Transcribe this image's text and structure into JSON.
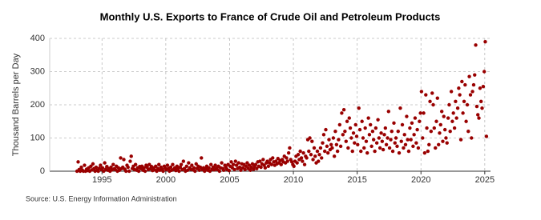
{
  "chart_data": {
    "type": "scatter",
    "title": "Monthly U.S. Exports to France of Crude Oil and Petroleum Products",
    "y_label": "Thousand Barrels per Day",
    "source": "Source: U.S. Energy Information Administration",
    "color": "#990000",
    "grid": true,
    "xlim": [
      1990.9,
      2025.45
    ],
    "ylim": [
      0,
      400
    ],
    "xticks": [
      1995,
      2000,
      2005,
      2010,
      2015,
      2020,
      2025
    ],
    "yticks": [
      0,
      100,
      200,
      300,
      400
    ],
    "x": [
      1993.04,
      1993.13,
      1993.21,
      1993.29,
      1993.38,
      1993.46,
      1993.54,
      1993.63,
      1993.71,
      1993.79,
      1993.88,
      1993.96,
      1994.04,
      1994.13,
      1994.21,
      1994.29,
      1994.38,
      1994.46,
      1994.54,
      1994.63,
      1994.71,
      1994.79,
      1994.88,
      1994.96,
      1995.04,
      1995.13,
      1995.21,
      1995.29,
      1995.38,
      1995.46,
      1995.54,
      1995.63,
      1995.71,
      1995.79,
      1995.88,
      1995.96,
      1996.04,
      1996.13,
      1996.21,
      1996.29,
      1996.38,
      1996.46,
      1996.54,
      1996.63,
      1996.71,
      1996.79,
      1996.88,
      1996.96,
      1997.04,
      1997.13,
      1997.21,
      1997.29,
      1997.38,
      1997.46,
      1997.54,
      1997.63,
      1997.71,
      1997.79,
      1997.88,
      1997.96,
      1998.04,
      1998.13,
      1998.21,
      1998.29,
      1998.38,
      1998.46,
      1998.54,
      1998.63,
      1998.71,
      1998.79,
      1998.88,
      1998.96,
      1999.04,
      1999.13,
      1999.21,
      1999.29,
      1999.38,
      1999.46,
      1999.54,
      1999.63,
      1999.71,
      1999.79,
      1999.88,
      1999.96,
      2000.04,
      2000.13,
      2000.21,
      2000.29,
      2000.38,
      2000.46,
      2000.54,
      2000.63,
      2000.71,
      2000.79,
      2000.88,
      2000.96,
      2001.04,
      2001.13,
      2001.21,
      2001.29,
      2001.38,
      2001.46,
      2001.54,
      2001.63,
      2001.71,
      2001.79,
      2001.88,
      2001.96,
      2002.04,
      2002.13,
      2002.21,
      2002.29,
      2002.38,
      2002.46,
      2002.54,
      2002.63,
      2002.71,
      2002.79,
      2002.88,
      2002.96,
      2003.04,
      2003.13,
      2003.21,
      2003.29,
      2003.38,
      2003.46,
      2003.54,
      2003.63,
      2003.71,
      2003.79,
      2003.88,
      2003.96,
      2004.04,
      2004.13,
      2004.21,
      2004.29,
      2004.38,
      2004.46,
      2004.54,
      2004.63,
      2004.71,
      2004.79,
      2004.88,
      2004.96,
      2005.04,
      2005.13,
      2005.21,
      2005.29,
      2005.38,
      2005.46,
      2005.54,
      2005.63,
      2005.71,
      2005.79,
      2005.88,
      2005.96,
      2006.04,
      2006.13,
      2006.21,
      2006.29,
      2006.38,
      2006.46,
      2006.54,
      2006.63,
      2006.71,
      2006.79,
      2006.88,
      2006.96,
      2007.04,
      2007.13,
      2007.21,
      2007.29,
      2007.38,
      2007.46,
      2007.54,
      2007.63,
      2007.71,
      2007.79,
      2007.88,
      2007.96,
      2008.04,
      2008.13,
      2008.21,
      2008.29,
      2008.38,
      2008.46,
      2008.54,
      2008.63,
      2008.71,
      2008.79,
      2008.88,
      2008.96,
      2009.04,
      2009.13,
      2009.21,
      2009.29,
      2009.38,
      2009.46,
      2009.54,
      2009.63,
      2009.71,
      2009.79,
      2009.88,
      2009.96,
      2010.04,
      2010.13,
      2010.21,
      2010.29,
      2010.38,
      2010.46,
      2010.54,
      2010.63,
      2010.71,
      2010.79,
      2010.88,
      2010.96,
      2011.04,
      2011.13,
      2011.21,
      2011.29,
      2011.38,
      2011.46,
      2011.54,
      2011.63,
      2011.71,
      2011.79,
      2011.88,
      2011.96,
      2012.04,
      2012.13,
      2012.21,
      2012.29,
      2012.38,
      2012.46,
      2012.54,
      2012.63,
      2012.71,
      2012.79,
      2012.88,
      2012.96,
      2013.04,
      2013.13,
      2013.21,
      2013.29,
      2013.38,
      2013.46,
      2013.54,
      2013.63,
      2013.71,
      2013.79,
      2013.88,
      2013.96,
      2014.04,
      2014.13,
      2014.21,
      2014.29,
      2014.38,
      2014.46,
      2014.54,
      2014.63,
      2014.71,
      2014.79,
      2014.88,
      2014.96,
      2015.04,
      2015.13,
      2015.21,
      2015.29,
      2015.38,
      2015.46,
      2015.54,
      2015.63,
      2015.71,
      2015.79,
      2015.88,
      2015.96,
      2016.04,
      2016.13,
      2016.21,
      2016.29,
      2016.38,
      2016.46,
      2016.54,
      2016.63,
      2016.71,
      2016.79,
      2016.88,
      2016.96,
      2017.04,
      2017.13,
      2017.21,
      2017.29,
      2017.38,
      2017.46,
      2017.54,
      2017.63,
      2017.71,
      2017.79,
      2017.88,
      2017.96,
      2018.04,
      2018.13,
      2018.21,
      2018.29,
      2018.38,
      2018.46,
      2018.54,
      2018.63,
      2018.71,
      2018.79,
      2018.88,
      2018.96,
      2019.04,
      2019.13,
      2019.21,
      2019.29,
      2019.38,
      2019.46,
      2019.54,
      2019.63,
      2019.71,
      2019.79,
      2019.88,
      2019.96,
      2020.04,
      2020.13,
      2020.21,
      2020.29,
      2020.38,
      2020.46,
      2020.54,
      2020.63,
      2020.71,
      2020.79,
      2020.88,
      2020.96,
      2021.04,
      2021.13,
      2021.21,
      2021.29,
      2021.38,
      2021.46,
      2021.54,
      2021.63,
      2021.71,
      2021.79,
      2021.88,
      2021.96,
      2022.04,
      2022.13,
      2022.21,
      2022.29,
      2022.38,
      2022.46,
      2022.54,
      2022.63,
      2022.71,
      2022.79,
      2022.88,
      2022.96,
      2023.04,
      2023.13,
      2023.21,
      2023.29,
      2023.38,
      2023.46,
      2023.54,
      2023.63,
      2023.71,
      2023.79,
      2023.88,
      2023.96,
      2024.04,
      2024.13,
      2024.21,
      2024.29,
      2024.38,
      2024.46,
      2024.54,
      2024.63,
      2024.71,
      2024.79,
      2024.88,
      2024.96,
      2025.04,
      2025.13
    ],
    "values": [
      0,
      28,
      5,
      0,
      12,
      3,
      0,
      18,
      0,
      6,
      2,
      10,
      0,
      15,
      4,
      22,
      8,
      0,
      12,
      3,
      0,
      9,
      18,
      5,
      10,
      0,
      25,
      6,
      14,
      3,
      8,
      0,
      12,
      4,
      20,
      7,
      5,
      15,
      0,
      10,
      3,
      40,
      8,
      12,
      35,
      6,
      0,
      18,
      12,
      0,
      30,
      45,
      8,
      15,
      5,
      20,
      3,
      10,
      0,
      14,
      8,
      15,
      3,
      10,
      0,
      18,
      12,
      5,
      20,
      7,
      14,
      2,
      10,
      4,
      15,
      0,
      8,
      20,
      3,
      12,
      6,
      0,
      15,
      9,
      5,
      18,
      8,
      0,
      12,
      3,
      20,
      6,
      10,
      2,
      15,
      8,
      0,
      12,
      20,
      5,
      30,
      8,
      0,
      15,
      3,
      25,
      10,
      6,
      18,
      4,
      10,
      0,
      22,
      8,
      15,
      3,
      12,
      40,
      5,
      10,
      0,
      8,
      15,
      3,
      10,
      0,
      20,
      6,
      12,
      4,
      18,
      9,
      5,
      15,
      0,
      10,
      25,
      8,
      3,
      18,
      12,
      6,
      20,
      2,
      15,
      28,
      10,
      20,
      5,
      30,
      18,
      8,
      25,
      12,
      3,
      22,
      10,
      20,
      5,
      15,
      25,
      8,
      18,
      3,
      12,
      22,
      6,
      15,
      20,
      8,
      28,
      15,
      30,
      12,
      22,
      35,
      18,
      10,
      25,
      30,
      15,
      25,
      35,
      20,
      40,
      28,
      18,
      30,
      22,
      38,
      25,
      32,
      20,
      35,
      28,
      45,
      25,
      40,
      30,
      55,
      70,
      35,
      28,
      20,
      15,
      30,
      45,
      25,
      50,
      35,
      60,
      40,
      30,
      55,
      20,
      45,
      40,
      95,
      60,
      100,
      50,
      90,
      35,
      70,
      45,
      25,
      60,
      30,
      50,
      70,
      40,
      85,
      110,
      60,
      125,
      75,
      55,
      95,
      65,
      80,
      70,
      100,
      45,
      120,
      80,
      60,
      95,
      140,
      75,
      175,
      110,
      185,
      120,
      90,
      150,
      70,
      160,
      130,
      100,
      60,
      115,
      85,
      140,
      105,
      80,
      190,
      125,
      60,
      150,
      100,
      70,
      130,
      90,
      55,
      160,
      110,
      140,
      75,
      120,
      95,
      60,
      130,
      85,
      155,
      100,
      70,
      115,
      90,
      65,
      110,
      130,
      80,
      100,
      180,
      70,
      95,
      120,
      60,
      145,
      85,
      100,
      75,
      120,
      55,
      190,
      90,
      140,
      70,
      110,
      80,
      165,
      95,
      60,
      130,
      95,
      145,
      75,
      110,
      160,
      85,
      125,
      70,
      150,
      175,
      240,
      100,
      175,
      55,
      230,
      130,
      60,
      80,
      210,
      120,
      235,
      200,
      130,
      70,
      150,
      220,
      80,
      115,
      140,
      180,
      90,
      165,
      125,
      100,
      85,
      160,
      200,
      120,
      240,
      150,
      175,
      130,
      210,
      160,
      190,
      250,
      230,
      95,
      270,
      175,
      210,
      260,
      150,
      200,
      120,
      285,
      230,
      100,
      240,
      260,
      290,
      380,
      195,
      170,
      160,
      250,
      210,
      190,
      255,
      300,
      390,
      105
    ]
  }
}
